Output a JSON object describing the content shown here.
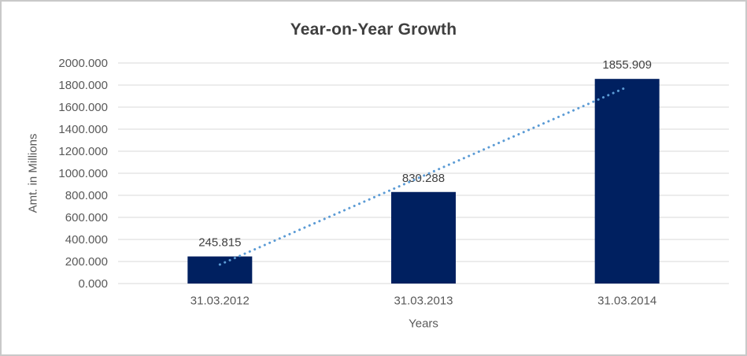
{
  "window": {
    "background": "#ffffff",
    "frame_border_color": "#c9c9c9"
  },
  "chart_data": {
    "type": "bar",
    "title": "Year-on-Year Growth",
    "xlabel": "Years",
    "ylabel": "Amt. in Millions",
    "categories": [
      "31.03.2012",
      "31.03.2013",
      "31.03.2014"
    ],
    "values": [
      245.815,
      830.288,
      1855.909
    ],
    "data_labels": [
      "245.815",
      "830.288",
      "1855.909"
    ],
    "ylim": [
      0,
      2000
    ],
    "y_ticks": [
      0,
      200,
      400,
      600,
      800,
      1000,
      1200,
      1400,
      1600,
      1800,
      2000
    ],
    "y_tick_labels": [
      "0.000",
      "200.000",
      "400.000",
      "600.000",
      "800.000",
      "1000.000",
      "1200.000",
      "1400.000",
      "1600.000",
      "1800.000",
      "2000.000"
    ],
    "grid": true,
    "legend": "none",
    "bar_color": "#002060",
    "gridline_color": "#d9d9d9",
    "trendline": {
      "type": "linear",
      "style": "dotted",
      "color": "#5b9bd5",
      "start_value": 172.29,
      "end_value": 1782.384
    },
    "text_colors": {
      "title": "#3f3f3f",
      "axis_labels": "#595959",
      "data_labels": "#404040"
    }
  }
}
